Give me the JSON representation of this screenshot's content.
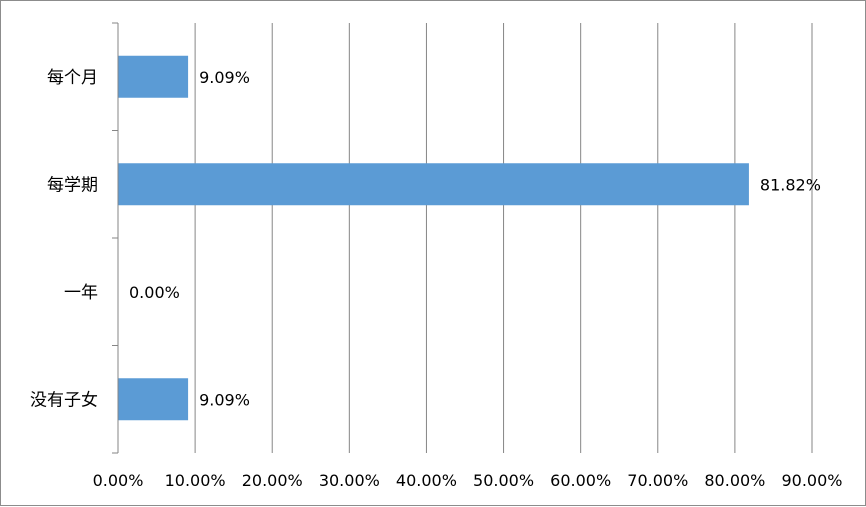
{
  "chart_data": {
    "type": "bar",
    "orientation": "horizontal",
    "title": "",
    "xlabel": "",
    "ylabel": "",
    "categories": [
      "每个月",
      "每学期",
      "一年",
      "没有子女"
    ],
    "values": [
      9.09,
      81.82,
      0.0,
      9.09
    ],
    "data_labels": [
      "9.09%",
      "81.82%",
      "0.00%",
      "9.09%"
    ],
    "xlim": [
      0,
      90
    ],
    "x_ticks": [
      0,
      10,
      20,
      30,
      40,
      50,
      60,
      70,
      80,
      90
    ],
    "x_tick_labels": [
      "0.00%",
      "10.00%",
      "20.00%",
      "30.00%",
      "40.00%",
      "50.00%",
      "60.00%",
      "70.00%",
      "80.00%",
      "90.00%"
    ],
    "grid": "vertical",
    "legend": "none",
    "bar_color": "#5b9bd5",
    "grid_color": "#868686"
  }
}
